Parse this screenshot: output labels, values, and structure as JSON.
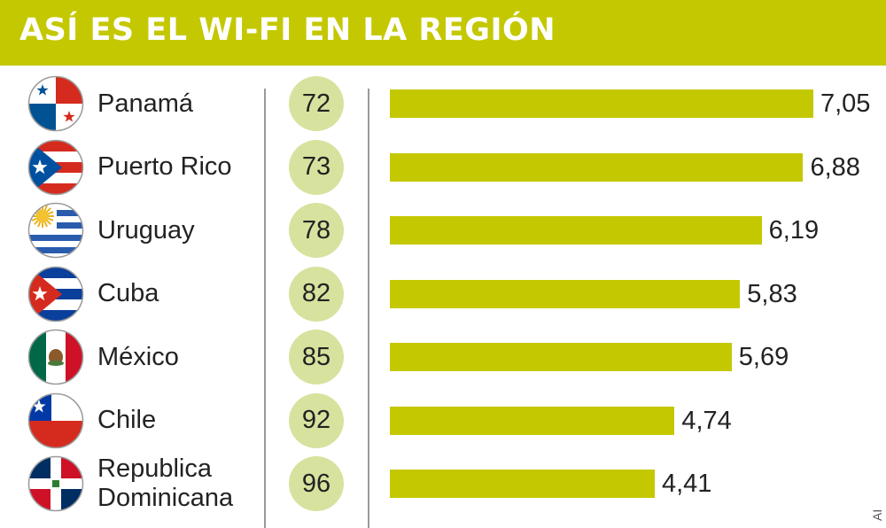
{
  "header": {
    "title": "ASÍ ES EL WI-FI EN LA REGIÓN"
  },
  "credit": "AI",
  "colors": {
    "header_bg": "#c4c800",
    "bar": "#c4c800",
    "bubble": "#d7e29e",
    "text": "#222222"
  },
  "chart_data": {
    "type": "bar",
    "orientation": "horizontal",
    "title": "ASÍ ES EL WI-FI EN LA REGIÓN",
    "categories": [
      "Panamá",
      "Puerto Rico",
      "Uruguay",
      "Cuba",
      "México",
      "Chile",
      "Republica Dominicana"
    ],
    "category_lines": [
      [
        "Panamá"
      ],
      [
        "Puerto Rico"
      ],
      [
        "Uruguay"
      ],
      [
        "Cuba"
      ],
      [
        "México"
      ],
      [
        "Chile"
      ],
      [
        "Republica",
        "Dominicana"
      ]
    ],
    "ranks": [
      72,
      73,
      78,
      82,
      85,
      92,
      96
    ],
    "values": [
      7.05,
      6.88,
      6.19,
      5.83,
      5.69,
      4.74,
      4.41
    ],
    "value_labels": [
      "7,05",
      "6,88",
      "6,19",
      "5,83",
      "5,69",
      "4,74",
      "4,41"
    ],
    "flag_icons": [
      "flag-panama-icon",
      "flag-puerto-rico-icon",
      "flag-uruguay-icon",
      "flag-cuba-icon",
      "flag-mexico-icon",
      "flag-chile-icon",
      "flag-dominican-republic-icon"
    ],
    "grid": false,
    "legend": "none"
  }
}
